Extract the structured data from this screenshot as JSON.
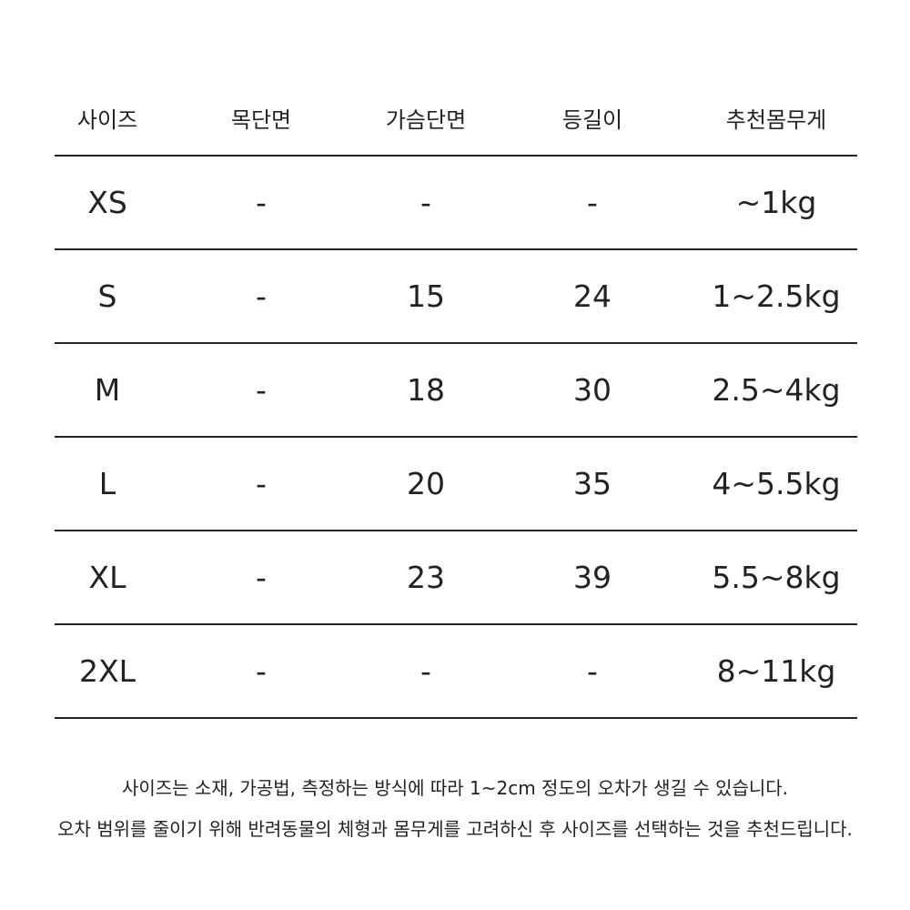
{
  "table": {
    "headers": [
      "사이즈",
      "목단면",
      "가슴단면",
      "등길이",
      "추천몸무게"
    ],
    "rows": [
      [
        "XS",
        "-",
        "-",
        "-",
        "~1kg"
      ],
      [
        "S",
        "-",
        "15",
        "24",
        "1~2.5kg"
      ],
      [
        "M",
        "-",
        "18",
        "30",
        "2.5~4kg"
      ],
      [
        "L",
        "-",
        "20",
        "35",
        "4~5.5kg"
      ],
      [
        "XL",
        "-",
        "23",
        "39",
        "5.5~8kg"
      ],
      [
        "2XL",
        "-",
        "-",
        "-",
        "8~11kg"
      ]
    ]
  },
  "notes": [
    "사이즈는 소재, 가공법, 측정하는 방식에 따라 1~2cm 정도의 오차가 생길 수 있습니다.",
    "오차 범위를 줄이기 위해 반려동물의 체형과 몸무게를 고려하신 후 사이즈를 선택하는 것을 추천드립니다."
  ]
}
